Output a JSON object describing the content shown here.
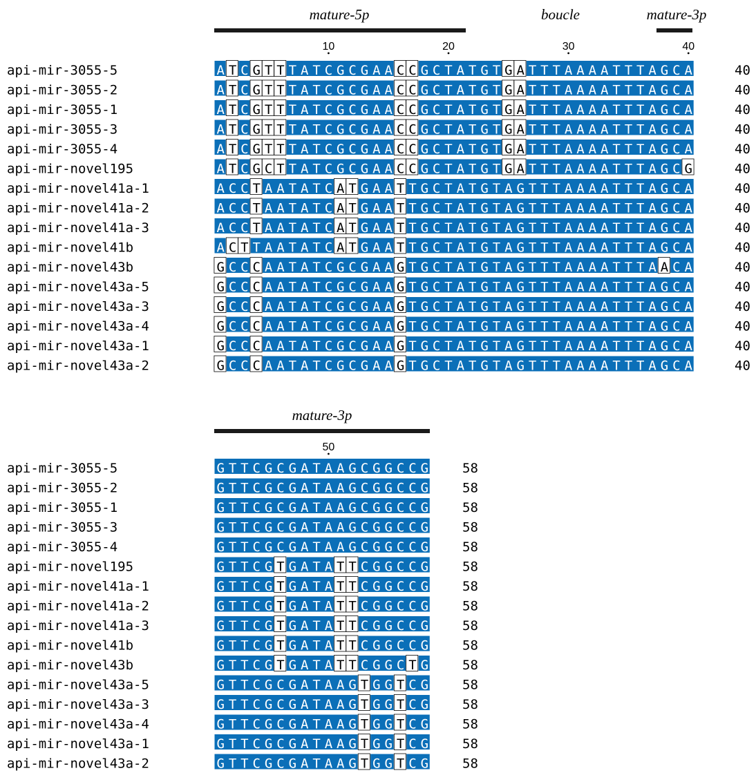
{
  "blocks": [
    {
      "start": 1,
      "end_label": "40",
      "regions": [
        {
          "label": "mature-5p",
          "from": 1,
          "to": 21
        },
        {
          "label": "boucle",
          "from": null,
          "to": null
        },
        {
          "label": "mature-3p",
          "from": 37,
          "to": 40
        }
      ],
      "ruler": [
        "10",
        "20",
        "30",
        "40"
      ],
      "rows": [
        {
          "name": "api-mir-3055-5",
          "seq": "ATCGTTTATCGCGAACCGCTATGTGATTTAAAATTTAGCA"
        },
        {
          "name": "api-mir-3055-2",
          "seq": "ATCGTTTATCGCGAACCGCTATGTGATTTAAAATTTAGCA"
        },
        {
          "name": "api-mir-3055-1",
          "seq": "ATCGTTTATCGCGAACCGCTATGTGATTTAAAATTTAGCA"
        },
        {
          "name": "api-mir-3055-3",
          "seq": "ATCGTTTATCGCGAACCGCTATGTGATTTAAAATTTAGCA"
        },
        {
          "name": "api-mir-3055-4",
          "seq": "ATCGTTTATCGCGAACCGCTATGTGATTTAAAATTTAGCA"
        },
        {
          "name": "api-mir-novel195",
          "seq": "ATCGCTTATCGCGAACCGCTATGTGATTTAAAATTTAGCG"
        },
        {
          "name": "api-mir-novel41a-1",
          "seq": "ACCTAATATCATGAATTGCTATGTAGTTTAAAATTTAGCA"
        },
        {
          "name": "api-mir-novel41a-2",
          "seq": "ACCTAATATCATGAATTGCTATGTAGTTTAAAATTTAGCA"
        },
        {
          "name": "api-mir-novel41a-3",
          "seq": "ACCTAATATCATGAATTGCTATGTAGTTTAAAATTTAGCA"
        },
        {
          "name": "api-mir-novel41b",
          "seq": "ACTTAATATCATGAATTGCTATGTAGTTTAAAATTTAGCA"
        },
        {
          "name": "api-mir-novel43b",
          "seq": "GCCCAATATCGCGAAGTGCTATGTAGTTTAAAATTTAACA"
        },
        {
          "name": "api-mir-novel43a-5",
          "seq": "GCCCAATATCGCGAAGTGCTATGTAGTTTAAAATTTAGCA"
        },
        {
          "name": "api-mir-novel43a-3",
          "seq": "GCCCAATATCGCGAAGTGCTATGTAGTTTAAAATTTAGCA"
        },
        {
          "name": "api-mir-novel43a-4",
          "seq": "GCCCAATATCGCGAAGTGCTATGTAGTTTAAAATTTAGCA"
        },
        {
          "name": "api-mir-novel43a-1",
          "seq": "GCCCAATATCGCGAAGTGCTATGTAGTTTAAAATTTAGCA"
        },
        {
          "name": "api-mir-novel43a-2",
          "seq": "GCCCAATATCGCGAAGTGCTATGTAGTTTAAAATTTAGCA"
        }
      ],
      "unshaded": {
        "api-mir-3055-5": [
          2,
          4,
          5,
          6,
          16,
          17,
          25,
          26
        ],
        "api-mir-3055-2": [
          2,
          4,
          5,
          6,
          16,
          17,
          25,
          26
        ],
        "api-mir-3055-1": [
          2,
          4,
          5,
          6,
          16,
          17,
          25,
          26
        ],
        "api-mir-3055-3": [
          2,
          4,
          5,
          6,
          16,
          17,
          25,
          26
        ],
        "api-mir-3055-4": [
          2,
          4,
          5,
          6,
          16,
          17,
          25,
          26
        ],
        "api-mir-novel195": [
          2,
          4,
          5,
          6,
          16,
          17,
          25,
          26,
          40
        ],
        "api-mir-novel41a-1": [
          4,
          11,
          12,
          16
        ],
        "api-mir-novel41a-2": [
          4,
          11,
          12,
          16
        ],
        "api-mir-novel41a-3": [
          4,
          11,
          12,
          16
        ],
        "api-mir-novel41b": [
          2,
          3,
          11,
          12,
          16
        ],
        "api-mir-novel43b": [
          1,
          4,
          16,
          38
        ],
        "api-mir-novel43a-5": [
          1,
          4,
          16
        ],
        "api-mir-novel43a-3": [
          1,
          4,
          16
        ],
        "api-mir-novel43a-4": [
          1,
          4,
          16
        ],
        "api-mir-novel43a-1": [
          1,
          4,
          16
        ],
        "api-mir-novel43a-2": [
          1,
          4,
          16
        ]
      }
    },
    {
      "start": 41,
      "end_label": "58",
      "regions": [
        {
          "label": "mature-3p",
          "from": 41,
          "to": 58
        }
      ],
      "ruler": [
        "50"
      ],
      "rows": [
        {
          "name": "api-mir-3055-5",
          "seq": "GTTCGCGATAAGCGGCCG"
        },
        {
          "name": "api-mir-3055-2",
          "seq": "GTTCGCGATAAGCGGCCG"
        },
        {
          "name": "api-mir-3055-1",
          "seq": "GTTCGCGATAAGCGGCCG"
        },
        {
          "name": "api-mir-3055-3",
          "seq": "GTTCGCGATAAGCGGCCG"
        },
        {
          "name": "api-mir-3055-4",
          "seq": "GTTCGCGATAAGCGGCCG"
        },
        {
          "name": "api-mir-novel195",
          "seq": "GTTCGTGATATTCGGCCG"
        },
        {
          "name": "api-mir-novel41a-1",
          "seq": "GTTCGTGATATTCGGCCG"
        },
        {
          "name": "api-mir-novel41a-2",
          "seq": "GTTCGTGATATTCGGCCG"
        },
        {
          "name": "api-mir-novel41a-3",
          "seq": "GTTCGTGATATTCGGCCG"
        },
        {
          "name": "api-mir-novel41b",
          "seq": "GTTCGTGATATTCGGCCG"
        },
        {
          "name": "api-mir-novel43b",
          "seq": "GTTCGTGATATTCGGCTG"
        },
        {
          "name": "api-mir-novel43a-5",
          "seq": "GTTCGCGATAAGTGGTCG"
        },
        {
          "name": "api-mir-novel43a-3",
          "seq": "GTTCGCGATAAGTGGTCG"
        },
        {
          "name": "api-mir-novel43a-4",
          "seq": "GTTCGCGATAAGTGGTCG"
        },
        {
          "name": "api-mir-novel43a-1",
          "seq": "GTTCGCGATAAGTGGTCG"
        },
        {
          "name": "api-mir-novel43a-2",
          "seq": "GTTCGCGATAAGTGGTCG"
        }
      ],
      "unshaded": {
        "api-mir-novel195": [
          46,
          51,
          52
        ],
        "api-mir-novel41a-1": [
          46,
          51,
          52
        ],
        "api-mir-novel41a-2": [
          46,
          51,
          52
        ],
        "api-mir-novel41a-3": [
          46,
          51,
          52
        ],
        "api-mir-novel41b": [
          46,
          51,
          52
        ],
        "api-mir-novel43b": [
          46,
          51,
          52,
          57
        ],
        "api-mir-novel43a-5": [
          53,
          56
        ],
        "api-mir-novel43a-3": [
          53,
          56
        ],
        "api-mir-novel43a-4": [
          53,
          56
        ],
        "api-mir-novel43a-1": [
          53,
          56
        ],
        "api-mir-novel43a-2": [
          53,
          56
        ]
      }
    }
  ],
  "colors": {
    "conserved_bg": "#0b6fb8",
    "conserved_text": "#ffffff",
    "variant_text": "#000000",
    "bar": "#1a1a1a"
  }
}
